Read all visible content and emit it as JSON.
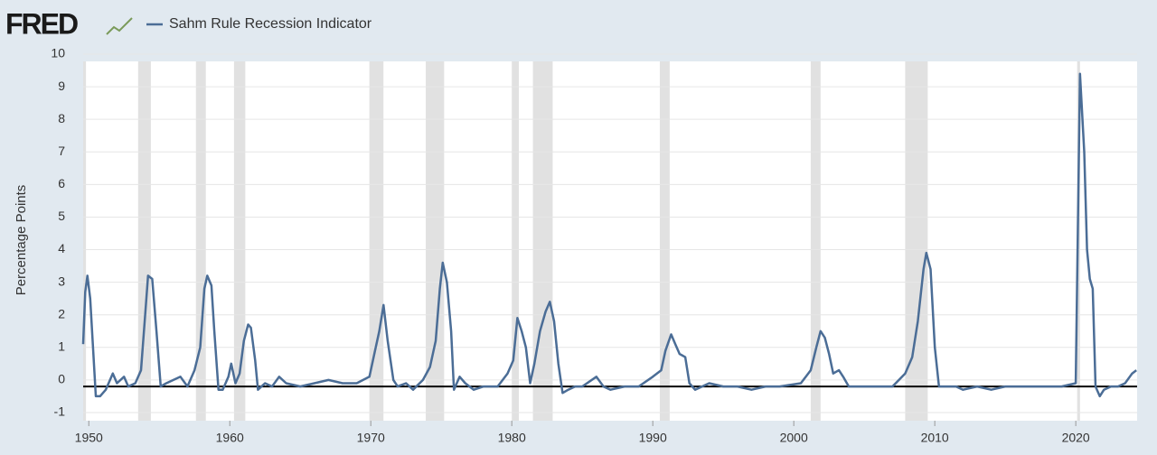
{
  "chart_data": {
    "type": "line",
    "logo": "FRED",
    "y_label": "Percentage Points",
    "x": [
      1949.6,
      1949.75,
      1949.9,
      1950.1,
      1950.3,
      1950.5,
      1950.8,
      1951.2,
      1951.7,
      1952.0,
      1952.5,
      1952.8,
      1953.3,
      1953.7,
      1954.0,
      1954.2,
      1954.5,
      1954.8,
      1955.1,
      1955.5,
      1956.0,
      1956.5,
      1957.0,
      1957.5,
      1957.9,
      1958.2,
      1958.4,
      1958.7,
      1958.9,
      1959.2,
      1959.5,
      1959.9,
      1960.1,
      1960.4,
      1960.7,
      1961.0,
      1961.3,
      1961.5,
      1961.8,
      1962.0,
      1962.5,
      1963.0,
      1963.5,
      1964.0,
      1965.0,
      1966.0,
      1967.0,
      1968.0,
      1969.0,
      1969.9,
      1970.3,
      1970.6,
      1970.9,
      1971.2,
      1971.6,
      1971.9,
      1972.5,
      1973.0,
      1973.7,
      1974.2,
      1974.6,
      1974.9,
      1975.1,
      1975.4,
      1975.7,
      1975.9,
      1976.3,
      1976.7,
      1977.3,
      1978.0,
      1979.0,
      1979.7,
      1980.1,
      1980.4,
      1980.7,
      1981.0,
      1981.3,
      1981.6,
      1982.0,
      1982.4,
      1982.7,
      1983.0,
      1983.3,
      1983.6,
      1984.0,
      1984.5,
      1985.0,
      1986.0,
      1986.5,
      1987.0,
      1988.0,
      1989.0,
      1990.0,
      1990.6,
      1990.9,
      1991.3,
      1991.6,
      1991.9,
      1992.3,
      1992.6,
      1993.0,
      1994.0,
      1995.0,
      1996.0,
      1997.0,
      1998.0,
      1999.0,
      2000.5,
      2001.2,
      2001.6,
      2001.9,
      2002.2,
      2002.5,
      2002.8,
      2003.2,
      2003.5,
      2003.9,
      2005.0,
      2006.0,
      2007.0,
      2007.9,
      2008.4,
      2008.8,
      2009.2,
      2009.4,
      2009.7,
      2010.0,
      2010.3,
      2010.8,
      2011.5,
      2012.0,
      2013.0,
      2014.0,
      2015.0,
      2016.0,
      2017.0,
      2018.0,
      2019.0,
      2020.0,
      2020.3,
      2020.6,
      2020.8,
      2021.0,
      2021.2,
      2021.4,
      2021.7,
      2022.0,
      2022.5,
      2023.0,
      2023.5,
      2024.0,
      2024.3
    ],
    "series": [
      {
        "name": "Sahm Rule Recession Indicator",
        "color": "#4b6d96",
        "values": [
          1.1,
          2.7,
          3.2,
          2.5,
          1.0,
          -0.5,
          -0.5,
          -0.3,
          0.2,
          -0.1,
          0.1,
          -0.2,
          -0.1,
          0.3,
          2.0,
          3.2,
          3.1,
          1.5,
          -0.2,
          -0.1,
          0.0,
          0.1,
          -0.2,
          0.3,
          1.0,
          2.8,
          3.2,
          2.9,
          1.5,
          -0.3,
          -0.3,
          0.1,
          0.5,
          -0.1,
          0.2,
          1.2,
          1.7,
          1.6,
          0.6,
          -0.3,
          -0.1,
          -0.2,
          0.1,
          -0.1,
          -0.2,
          -0.1,
          0.0,
          -0.1,
          -0.1,
          0.1,
          0.9,
          1.5,
          2.3,
          1.2,
          0.0,
          -0.2,
          -0.1,
          -0.3,
          0.0,
          0.4,
          1.2,
          2.8,
          3.6,
          3.0,
          1.5,
          -0.3,
          0.1,
          -0.1,
          -0.3,
          -0.2,
          -0.2,
          0.2,
          0.6,
          1.9,
          1.5,
          1.0,
          -0.1,
          0.5,
          1.5,
          2.1,
          2.4,
          1.8,
          0.5,
          -0.4,
          -0.3,
          -0.2,
          -0.2,
          0.1,
          -0.2,
          -0.3,
          -0.2,
          -0.2,
          0.1,
          0.3,
          0.9,
          1.4,
          1.1,
          0.8,
          0.7,
          -0.1,
          -0.3,
          -0.1,
          -0.2,
          -0.2,
          -0.3,
          -0.2,
          -0.2,
          -0.1,
          0.3,
          1.0,
          1.5,
          1.3,
          0.8,
          0.2,
          0.3,
          0.1,
          -0.2,
          -0.2,
          -0.2,
          -0.2,
          0.2,
          0.7,
          1.8,
          3.4,
          3.9,
          3.4,
          1.0,
          -0.2,
          -0.2,
          -0.2,
          -0.3,
          -0.2,
          -0.3,
          -0.2,
          -0.2,
          -0.2,
          -0.2,
          -0.2,
          -0.1,
          9.4,
          7.0,
          4.0,
          3.1,
          2.8,
          -0.2,
          -0.5,
          -0.3,
          -0.2,
          -0.2,
          -0.1,
          0.2,
          0.3
        ]
      }
    ],
    "recessions": [
      [
        1948.9,
        1949.8
      ],
      [
        1953.5,
        1954.4
      ],
      [
        1957.6,
        1958.3
      ],
      [
        1960.3,
        1961.1
      ],
      [
        1969.9,
        1970.9
      ],
      [
        1973.9,
        1975.2
      ],
      [
        1980.0,
        1980.5
      ],
      [
        1981.5,
        1982.9
      ],
      [
        1990.5,
        1991.2
      ],
      [
        2001.2,
        2001.9
      ],
      [
        2007.9,
        2009.5
      ],
      [
        2020.1,
        2020.3
      ]
    ],
    "reference_line": -0.2,
    "xlim": [
      1949.6,
      2024.35
    ],
    "xticks": [
      1950,
      1960,
      1970,
      1980,
      1990,
      2000,
      2010,
      2020
    ],
    "ylim": [
      -1.25,
      10
    ],
    "yticks": [
      -1,
      0,
      1,
      2,
      3,
      4,
      5,
      6,
      7,
      8,
      9,
      10
    ],
    "grid": true
  }
}
